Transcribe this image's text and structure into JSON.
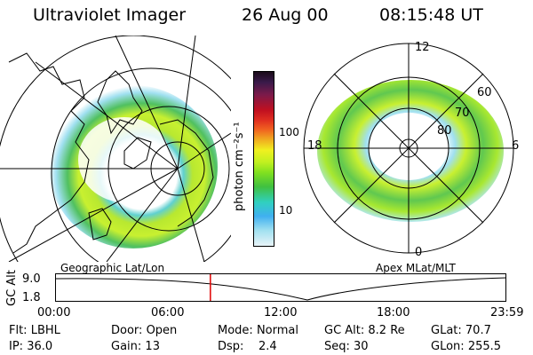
{
  "header": {
    "title": "Ultraviolet Imager",
    "date": "26 Aug 00",
    "time": "08:15:48 UT"
  },
  "colorbar": {
    "unit": "photon cm⁻²s⁻¹",
    "ticks": [
      "100",
      "10"
    ],
    "colors": [
      "#1a0a1a",
      "#3a1a4a",
      "#7a1a4a",
      "#c01020",
      "#e03020",
      "#f06020",
      "#f0a020",
      "#f0f020",
      "#c0f020",
      "#80e020",
      "#40c040",
      "#30d0c0",
      "#40b0f0",
      "#a0e0f0",
      "#e8f4f8"
    ]
  },
  "left_map": {
    "label": "Geographic Lat/Lon"
  },
  "right_map": {
    "label": "Apex MLat/MLT",
    "mlt_labels": {
      "top": "12",
      "left": "18",
      "right": "6",
      "bottom": "0"
    },
    "lat_labels": [
      "60",
      "70",
      "80"
    ]
  },
  "altitude_plot": {
    "ylabel": "GC Alt",
    "yticks": [
      "9.0",
      "1.8"
    ],
    "xticks": [
      "00:00",
      "06:00",
      "12:00",
      "18:00",
      "23:59"
    ],
    "current_time_marker_hours": 8.26,
    "marker_color": "#e00000"
  },
  "status": {
    "col1": [
      {
        "label": "Flt:",
        "value": "LBHL"
      },
      {
        "label": "IP:",
        "value": "36.0"
      }
    ],
    "col2": [
      {
        "label": "Door:",
        "value": "Open"
      },
      {
        "label": "Gain:",
        "value": "13"
      }
    ],
    "col3": [
      {
        "label": "Mode:",
        "value": "Normal"
      },
      {
        "label": "Dsp:",
        "value": "2.4"
      }
    ],
    "col4": [
      {
        "label": "GC Alt:",
        "value": "8.2 Re"
      },
      {
        "label": "Seq:",
        "value": "30"
      }
    ],
    "col5": [
      {
        "label": "GLat:",
        "value": "70.7"
      },
      {
        "label": "GLon:",
        "value": "255.5"
      }
    ]
  }
}
